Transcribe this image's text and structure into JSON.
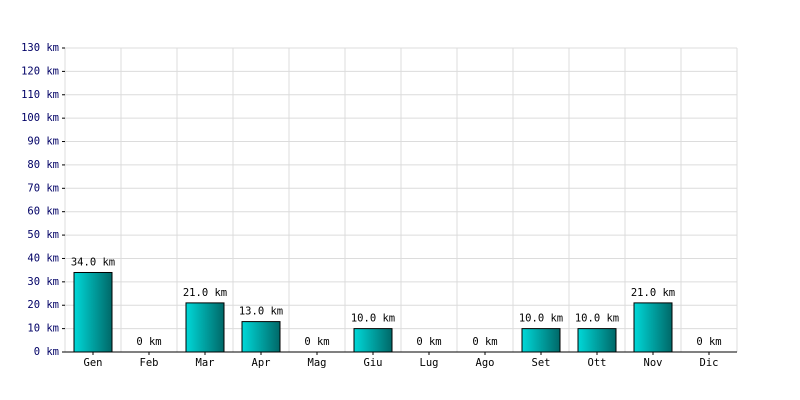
{
  "chart_data": {
    "type": "bar",
    "categories": [
      "Gen",
      "Feb",
      "Mar",
      "Apr",
      "Mag",
      "Giu",
      "Lug",
      "Ago",
      "Set",
      "Ott",
      "Nov",
      "Dic"
    ],
    "values": [
      34,
      0,
      21,
      13,
      0,
      10,
      0,
      0,
      10,
      10,
      21,
      0
    ],
    "value_labels": [
      "34.0 km",
      "0 km",
      "21.0 km",
      "13.0 km",
      "0 km",
      "10.0 km",
      "0 km",
      "0 km",
      "10.0 km",
      "10.0 km",
      "21.0 km",
      "0 km"
    ],
    "color": "#00d8d8",
    "ylim": [
      0,
      130
    ],
    "yticks": [
      {
        "value": 0,
        "label": "0 km"
      },
      {
        "value": 10,
        "label": "10 km"
      },
      {
        "value": 20,
        "label": "20 km"
      },
      {
        "value": 30,
        "label": "30 km"
      },
      {
        "value": 40,
        "label": "40 km"
      },
      {
        "value": 50,
        "label": "50 km"
      },
      {
        "value": 60,
        "label": "60 km"
      },
      {
        "value": 70,
        "label": "70 km"
      },
      {
        "value": 80,
        "label": "80 km"
      },
      {
        "value": 90,
        "label": "90 km"
      },
      {
        "value": 100,
        "label": "100 km"
      },
      {
        "value": 110,
        "label": "110 km"
      },
      {
        "value": 120,
        "label": "120 km"
      },
      {
        "value": 130,
        "label": "130 km"
      }
    ],
    "grid": true
  }
}
